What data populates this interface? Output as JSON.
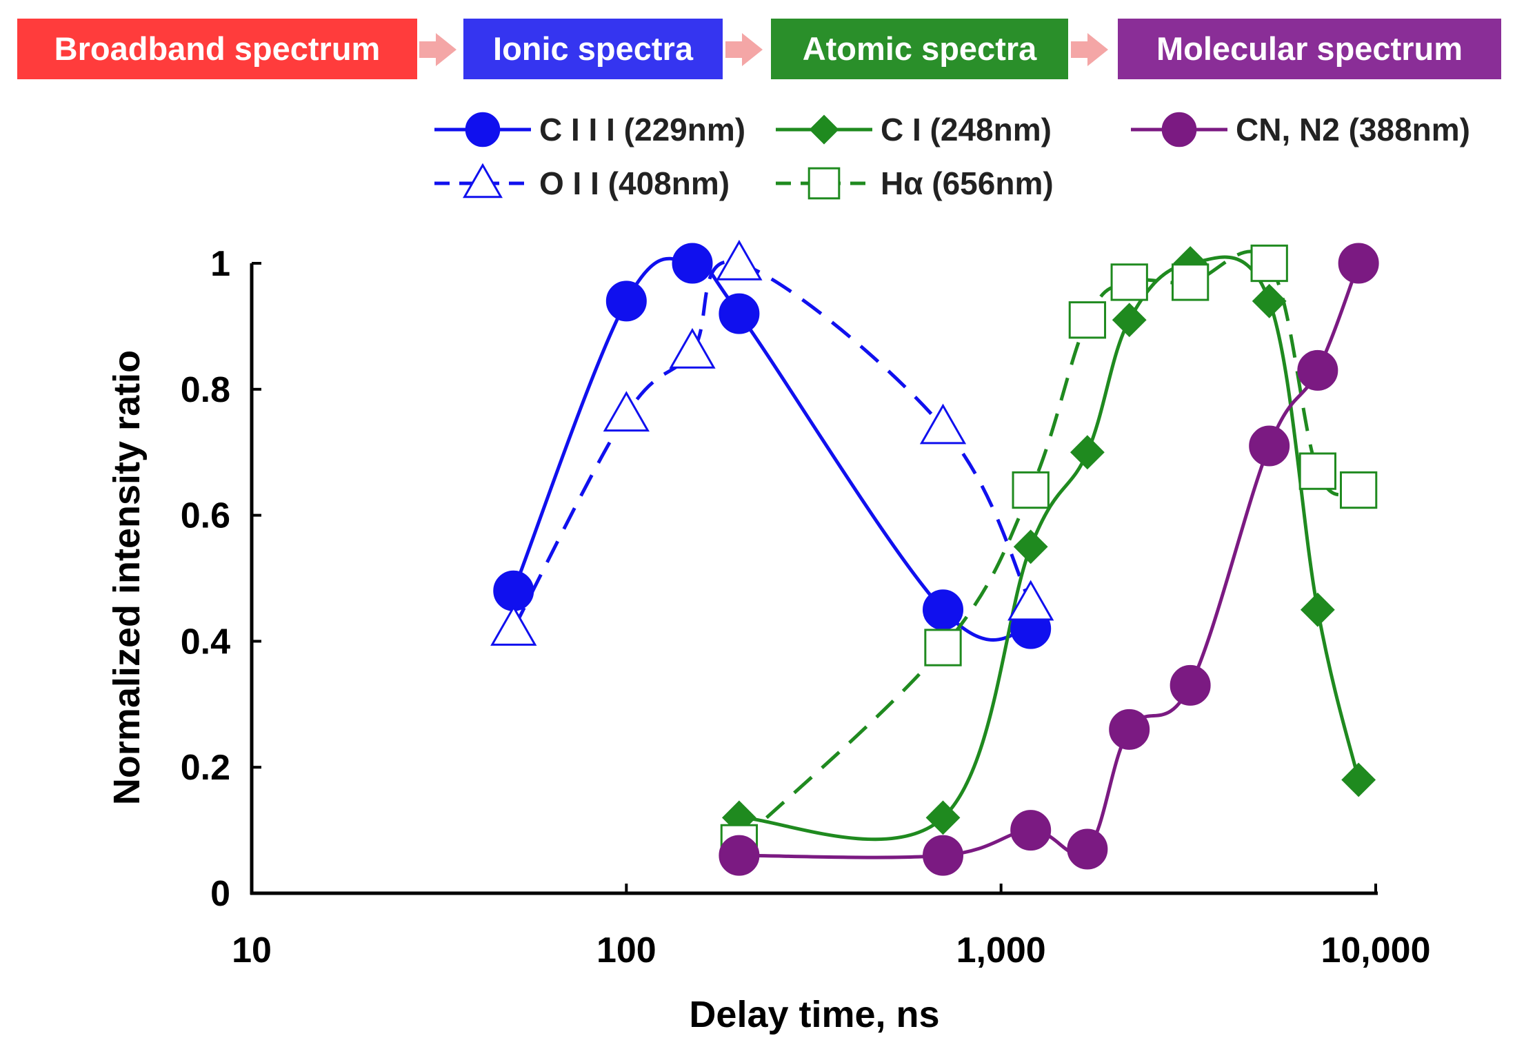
{
  "banner": {
    "stages": [
      {
        "label": "Broadband spectrum",
        "color": "#ff3c3c"
      },
      {
        "label": "Ionic spectra",
        "color": "#3535f0"
      },
      {
        "label": "Atomic spectra",
        "color": "#2a8f2a"
      },
      {
        "label": "Molecular spectrum",
        "color": "#8a2e97"
      }
    ],
    "arrow_color": "#f4a6a6"
  },
  "chart_data": {
    "type": "line",
    "xscale": "log",
    "xlabel": "Delay time, ns",
    "ylabel": "Normalized intensity ratio",
    "xlim": [
      10,
      10000
    ],
    "ylim": [
      0,
      1
    ],
    "xticks": [
      10,
      100,
      1000,
      10000
    ],
    "xtick_labels": [
      "10",
      "100",
      "1,000",
      "10,000"
    ],
    "yticks": [
      0,
      0.2,
      0.4,
      0.6,
      0.8,
      1
    ],
    "ytick_labels": [
      "0",
      "0.2",
      "0.4",
      "0.6",
      "0.8",
      "1"
    ],
    "legend_position": "top",
    "series": [
      {
        "name": "C I I I (229nm)",
        "color": "#1010ee",
        "marker": "circle",
        "filled": true,
        "dashed": false,
        "x": [
          50,
          100,
          150,
          200,
          700,
          1200
        ],
        "y": [
          0.48,
          0.94,
          1.0,
          0.92,
          0.45,
          0.42
        ]
      },
      {
        "name": "O I I (408nm)",
        "color": "#1010ee",
        "marker": "triangle",
        "filled": false,
        "dashed": true,
        "x": [
          50,
          100,
          150,
          200,
          700,
          1200
        ],
        "y": [
          0.42,
          0.76,
          0.86,
          1.0,
          0.74,
          0.46
        ]
      },
      {
        "name": "C I (248nm)",
        "color": "#1f8a1f",
        "marker": "diamond",
        "filled": true,
        "dashed": false,
        "x": [
          200,
          700,
          1200,
          1700,
          2200,
          3200,
          5200,
          7000,
          9000
        ],
        "y": [
          0.12,
          0.12,
          0.55,
          0.7,
          0.91,
          1.0,
          0.94,
          0.45,
          0.18
        ]
      },
      {
        "name": "Hα (656nm)",
        "color": "#1f8a1f",
        "marker": "square",
        "filled": false,
        "dashed": true,
        "x": [
          200,
          700,
          1200,
          1700,
          2200,
          3200,
          5200,
          7000,
          9000
        ],
        "y": [
          0.08,
          0.39,
          0.64,
          0.91,
          0.97,
          0.97,
          1.0,
          0.67,
          0.64
        ]
      },
      {
        "name": "CN, N2 (388nm)",
        "color": "#7b1a82",
        "marker": "circle",
        "filled": true,
        "dashed": false,
        "x": [
          200,
          700,
          1200,
          1700,
          2200,
          3200,
          5200,
          7000,
          9000
        ],
        "y": [
          0.06,
          0.06,
          0.1,
          0.07,
          0.26,
          0.33,
          0.71,
          0.83,
          1.0
        ]
      }
    ]
  }
}
